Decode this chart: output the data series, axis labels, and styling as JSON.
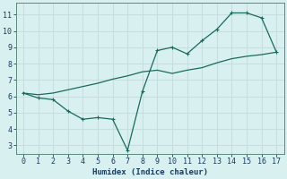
{
  "xlabel": "Humidex (Indice chaleur)",
  "ylabel": "",
  "bg_color": "#d8f0f0",
  "grid_color": "#c8dede",
  "line_color": "#1a6a5a",
  "xlim": [
    -0.5,
    17.5
  ],
  "ylim": [
    2.5,
    11.7
  ],
  "xticks": [
    0,
    1,
    2,
    3,
    4,
    5,
    6,
    7,
    8,
    9,
    10,
    11,
    12,
    13,
    14,
    15,
    16,
    17
  ],
  "yticks": [
    3,
    4,
    5,
    6,
    7,
    8,
    9,
    10,
    11
  ],
  "series1_x": [
    0,
    1,
    2,
    3,
    4,
    5,
    6,
    7,
    8,
    9,
    10,
    11,
    12,
    13,
    14,
    15,
    16,
    17
  ],
  "series1_y": [
    6.2,
    5.9,
    5.8,
    5.1,
    4.6,
    4.7,
    4.6,
    2.7,
    6.3,
    8.8,
    9.0,
    8.6,
    9.4,
    10.1,
    11.1,
    11.1,
    10.8,
    8.7
  ],
  "series2_x": [
    0,
    1,
    2,
    3,
    4,
    5,
    6,
    7,
    8,
    9,
    10,
    11,
    12,
    13,
    14,
    15,
    16,
    17
  ],
  "series2_y": [
    6.2,
    6.1,
    6.2,
    6.4,
    6.6,
    6.8,
    7.05,
    7.25,
    7.5,
    7.6,
    7.4,
    7.6,
    7.75,
    8.05,
    8.3,
    8.45,
    8.55,
    8.7
  ]
}
